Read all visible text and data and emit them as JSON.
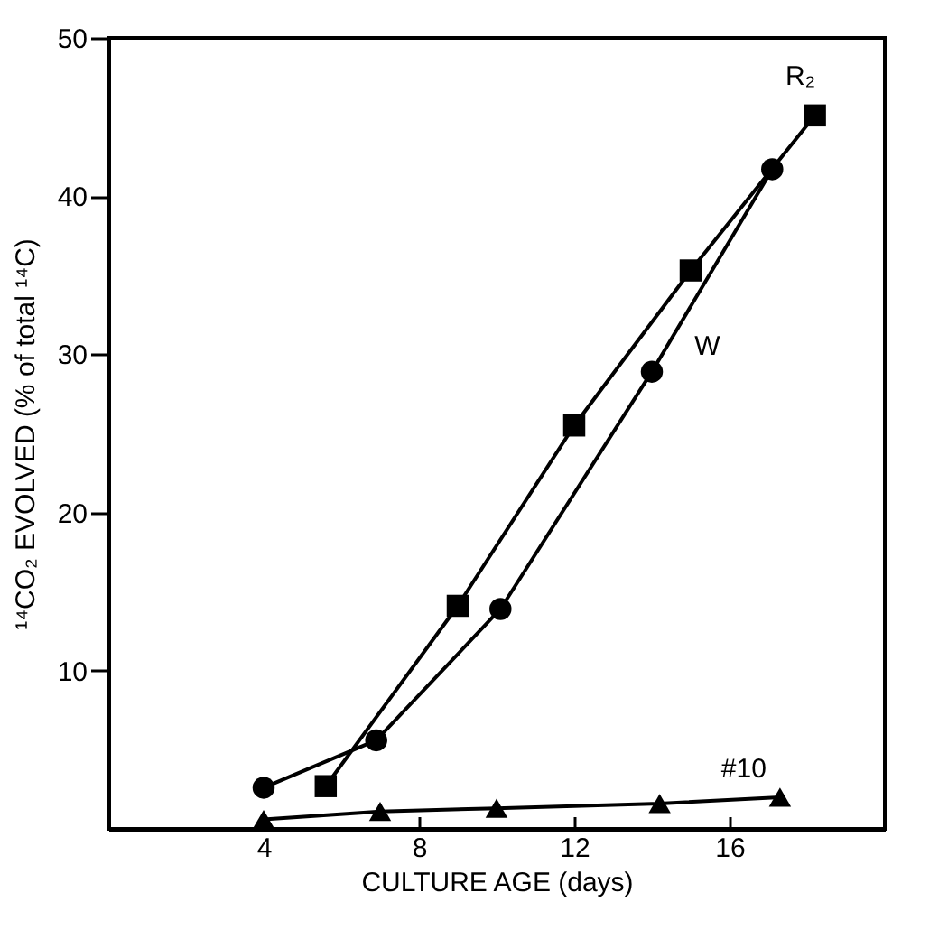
{
  "chart_data": {
    "type": "line",
    "xlabel": "CULTURE AGE (days)",
    "ylabel": "¹⁴CO₂  EVOLVED (% of total ¹⁴C)",
    "xlim": [
      0,
      20
    ],
    "xticks": [
      4,
      8,
      12,
      16
    ],
    "ylim": [
      0,
      50
    ],
    "yticks": [
      10,
      20,
      30,
      40,
      50
    ],
    "grid": false,
    "legend": false,
    "series": [
      {
        "name": "R₂",
        "color": "#000000",
        "marker": "square",
        "x": [
          5.6,
          9,
          12,
          15,
          18.2
        ],
        "values": [
          2.7,
          14.1,
          25.5,
          35.3,
          45.1
        ]
      },
      {
        "name": "W",
        "color": "#000000",
        "marker": "circle",
        "x": [
          4,
          6.9,
          10.1,
          14,
          17.1
        ],
        "values": [
          2.6,
          5.6,
          13.9,
          28.9,
          41.7
        ]
      },
      {
        "name": "#10",
        "color": "#000000",
        "marker": "triangle",
        "x": [
          4,
          7,
          10,
          14.2,
          17.3
        ],
        "values": [
          0.6,
          1.1,
          1.3,
          1.6,
          2.0
        ]
      }
    ]
  }
}
